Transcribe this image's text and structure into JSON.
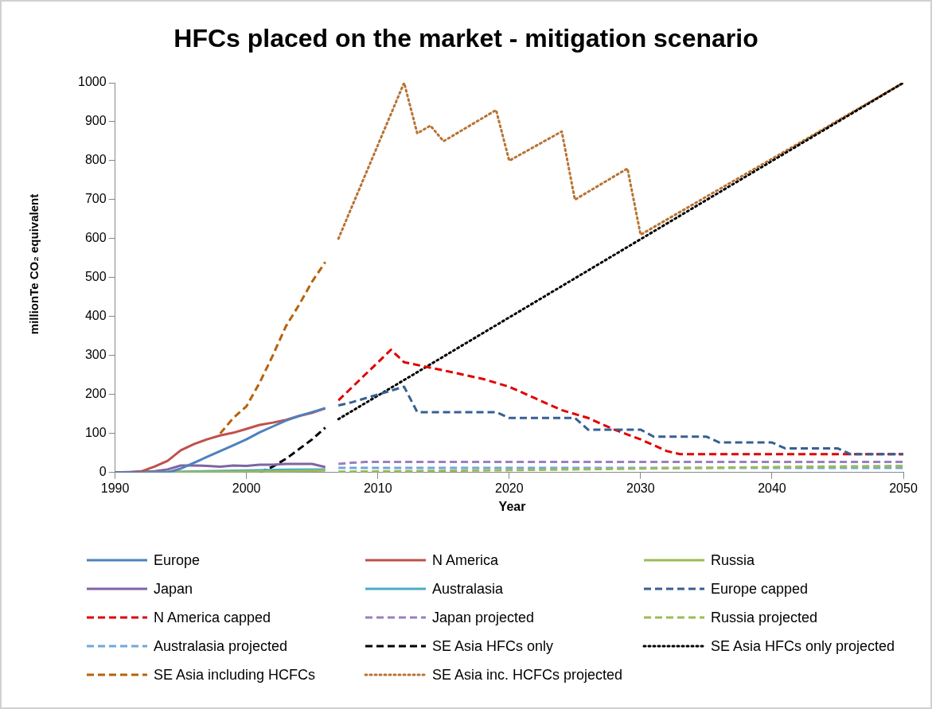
{
  "chart_data": {
    "type": "line",
    "title": "HFCs placed on the market - mitigation scenario",
    "xlabel": "Year",
    "ylabel": "millionTe CO₂ equivalent",
    "xlim": [
      1990,
      2050
    ],
    "xticks": [
      1990,
      2000,
      2010,
      2020,
      2030,
      2040,
      2050
    ],
    "ylim": [
      0,
      1000
    ],
    "yticks": [
      0,
      100,
      200,
      300,
      400,
      500,
      600,
      700,
      800,
      900,
      1000
    ],
    "grid": false,
    "legend": "bottom",
    "marker": "none",
    "series": [
      {
        "name": "Europe",
        "color": "#4f81bd",
        "line_style": "solid",
        "x": [
          1990,
          1994,
          1995,
          1996,
          1997,
          1998,
          1999,
          2000,
          2001,
          2002,
          2003,
          2004,
          2005,
          2006
        ],
        "values": [
          0,
          0,
          10,
          25,
          40,
          55,
          70,
          85,
          103,
          118,
          133,
          145,
          155,
          165
        ]
      },
      {
        "name": "N America",
        "color": "#c0504d",
        "line_style": "solid",
        "x": [
          1990,
          1991,
          1992,
          1993,
          1994,
          1995,
          1996,
          1997,
          1998,
          1999,
          2000,
          2001,
          2002,
          2003,
          2004,
          2005,
          2006
        ],
        "values": [
          0,
          0,
          3,
          15,
          30,
          57,
          73,
          85,
          95,
          102,
          112,
          122,
          128,
          135,
          145,
          153,
          165
        ]
      },
      {
        "name": "Russia",
        "color": "#9bbb59",
        "line_style": "solid",
        "x": [
          1990,
          1995,
          2000,
          2003,
          2006
        ],
        "values": [
          0,
          1,
          2,
          3,
          5
        ]
      },
      {
        "name": "Japan",
        "color": "#8064a2",
        "line_style": "solid",
        "x": [
          1990,
          1993,
          1994,
          1995,
          1996,
          1997,
          1998,
          1999,
          2000,
          2001,
          2002,
          2003,
          2004,
          2005,
          2006
        ],
        "values": [
          0,
          3,
          8,
          18,
          18,
          17,
          15,
          18,
          17,
          20,
          20,
          22,
          22,
          22,
          14
        ]
      },
      {
        "name": "Australasia",
        "color": "#4bacc6",
        "line_style": "solid",
        "x": [
          1990,
          1995,
          2000,
          2003,
          2006
        ],
        "values": [
          0,
          2,
          5,
          7,
          8
        ]
      },
      {
        "name": "Europe capped",
        "color": "#376092",
        "line_style": "dashed",
        "x": [
          2007,
          2008,
          2009,
          2010,
          2011,
          2012,
          2013,
          2019,
          2020,
          2025,
          2026,
          2030,
          2031,
          2035,
          2036,
          2040,
          2041,
          2045,
          2046,
          2050
        ],
        "values": [
          172,
          180,
          190,
          200,
          210,
          220,
          155,
          155,
          140,
          140,
          110,
          110,
          92,
          92,
          77,
          77,
          62,
          62,
          47,
          47
        ]
      },
      {
        "name": "N America capped",
        "color": "#e00000",
        "line_style": "dashed",
        "x": [
          2007,
          2011,
          2012,
          2015,
          2018,
          2020,
          2022,
          2024,
          2026,
          2028,
          2030,
          2032,
          2033,
          2050
        ],
        "values": [
          185,
          315,
          283,
          262,
          240,
          220,
          190,
          160,
          140,
          110,
          85,
          55,
          47,
          47
        ]
      },
      {
        "name": "Japan projected",
        "color": "#9a7fc0",
        "line_style": "dashed",
        "x": [
          2007,
          2008,
          2009,
          2050
        ],
        "values": [
          22,
          25,
          27,
          27
        ]
      },
      {
        "name": "Russia projected",
        "color": "#9bbb59",
        "line_style": "dashed",
        "x": [
          2007,
          2020,
          2040,
          2050
        ],
        "values": [
          2,
          6,
          14,
          17
        ]
      },
      {
        "name": "Australasia projected",
        "color": "#6fa8dc",
        "line_style": "dashed",
        "x": [
          2007,
          2050
        ],
        "values": [
          12,
          12
        ]
      },
      {
        "name": "SE Asia HFCs only",
        "color": "#000000",
        "line_style": "dashed",
        "x": [
          2001,
          2002,
          2003,
          2004,
          2005,
          2006
        ],
        "values": [
          0,
          15,
          35,
          60,
          85,
          115
        ]
      },
      {
        "name": "SE Asia HFCs only projected",
        "color": "#000000",
        "line_style": "dotted",
        "x": [
          2007,
          2050
        ],
        "values": [
          137,
          1000
        ]
      },
      {
        "name": "SE Asia including HCFCs",
        "color": "#b8620a",
        "line_style": "dashed",
        "x": [
          1998,
          1999,
          2000,
          2001,
          2002,
          2003,
          2004,
          2005,
          2006
        ],
        "values": [
          100,
          140,
          170,
          230,
          300,
          375,
          430,
          490,
          540
        ]
      },
      {
        "name": "SE Asia inc. HCFCs projected",
        "color": "#b87333",
        "line_style": "dotted",
        "x": [
          2007,
          2012,
          2013,
          2014,
          2015,
          2019,
          2020,
          2024,
          2025,
          2029,
          2030,
          2050
        ],
        "values": [
          600,
          1000,
          870,
          890,
          850,
          930,
          800,
          875,
          700,
          780,
          610,
          1000
        ]
      }
    ]
  }
}
